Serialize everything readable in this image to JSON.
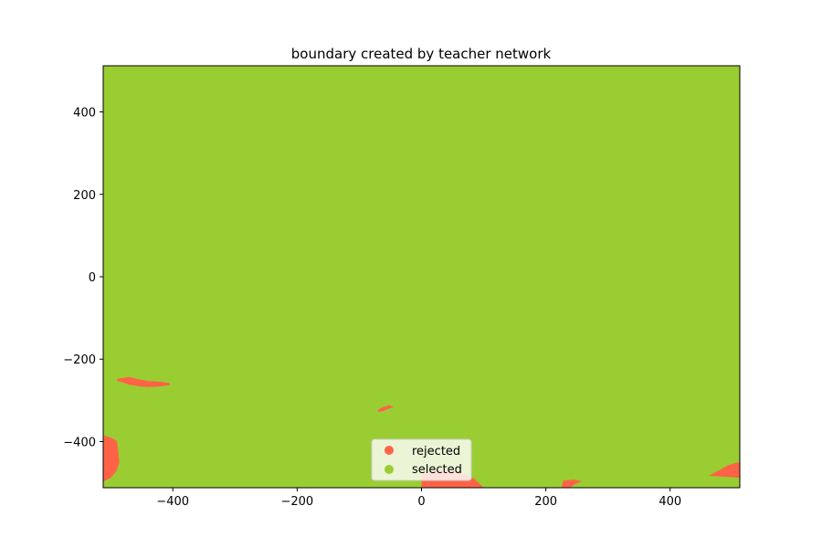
{
  "chart_data": {
    "type": "area",
    "title": "boundary created by teacher network",
    "xlabel": "",
    "ylabel": "",
    "xlim": [
      -512,
      512
    ],
    "ylim": [
      -512,
      512
    ],
    "x_ticks": [
      -400,
      -200,
      0,
      200,
      400
    ],
    "y_ticks": [
      400,
      200,
      0,
      -200,
      -400
    ],
    "grid": false,
    "legend": {
      "placement": "lower-center",
      "entries": [
        {
          "name": "rejected",
          "color": "#ff6347"
        },
        {
          "name": "selected",
          "color": "#9acd32"
        }
      ]
    },
    "regions": [
      {
        "class": "rejected",
        "points": [
          [
            -512,
            -385
          ],
          [
            -500,
            -390
          ],
          [
            -490,
            -398
          ],
          [
            -488,
            -420
          ],
          [
            -486,
            -450
          ],
          [
            -490,
            -470
          ],
          [
            -500,
            -488
          ],
          [
            -512,
            -497
          ]
        ]
      },
      {
        "class": "rejected",
        "points": [
          [
            -490,
            -248
          ],
          [
            -470,
            -243
          ],
          [
            -455,
            -249
          ],
          [
            -440,
            -253
          ],
          [
            -420,
            -255
          ],
          [
            -405,
            -258
          ],
          [
            -405,
            -263
          ],
          [
            -420,
            -266
          ],
          [
            -440,
            -268
          ],
          [
            -455,
            -266
          ],
          [
            -470,
            -262
          ],
          [
            -482,
            -256
          ],
          [
            -490,
            -252
          ]
        ]
      },
      {
        "class": "rejected",
        "points": [
          [
            -70,
            -323
          ],
          [
            -62,
            -316
          ],
          [
            -52,
            -312
          ],
          [
            -45,
            -316
          ],
          [
            -52,
            -320
          ],
          [
            -62,
            -326
          ],
          [
            -70,
            -328
          ]
        ]
      },
      {
        "class": "rejected",
        "points": [
          [
            0,
            -512
          ],
          [
            0,
            -480
          ],
          [
            30,
            -470
          ],
          [
            60,
            -475
          ],
          [
            85,
            -490
          ],
          [
            100,
            -512
          ]
        ]
      },
      {
        "class": "rejected",
        "points": [
          [
            225,
            -512
          ],
          [
            228,
            -495
          ],
          [
            245,
            -492
          ],
          [
            258,
            -497
          ],
          [
            248,
            -503
          ],
          [
            238,
            -512
          ]
        ]
      },
      {
        "class": "rejected",
        "points": [
          [
            462,
            -483
          ],
          [
            478,
            -470
          ],
          [
            492,
            -458
          ],
          [
            505,
            -452
          ],
          [
            512,
            -450
          ],
          [
            512,
            -488
          ],
          [
            498,
            -486
          ],
          [
            480,
            -485
          ]
        ]
      }
    ]
  }
}
